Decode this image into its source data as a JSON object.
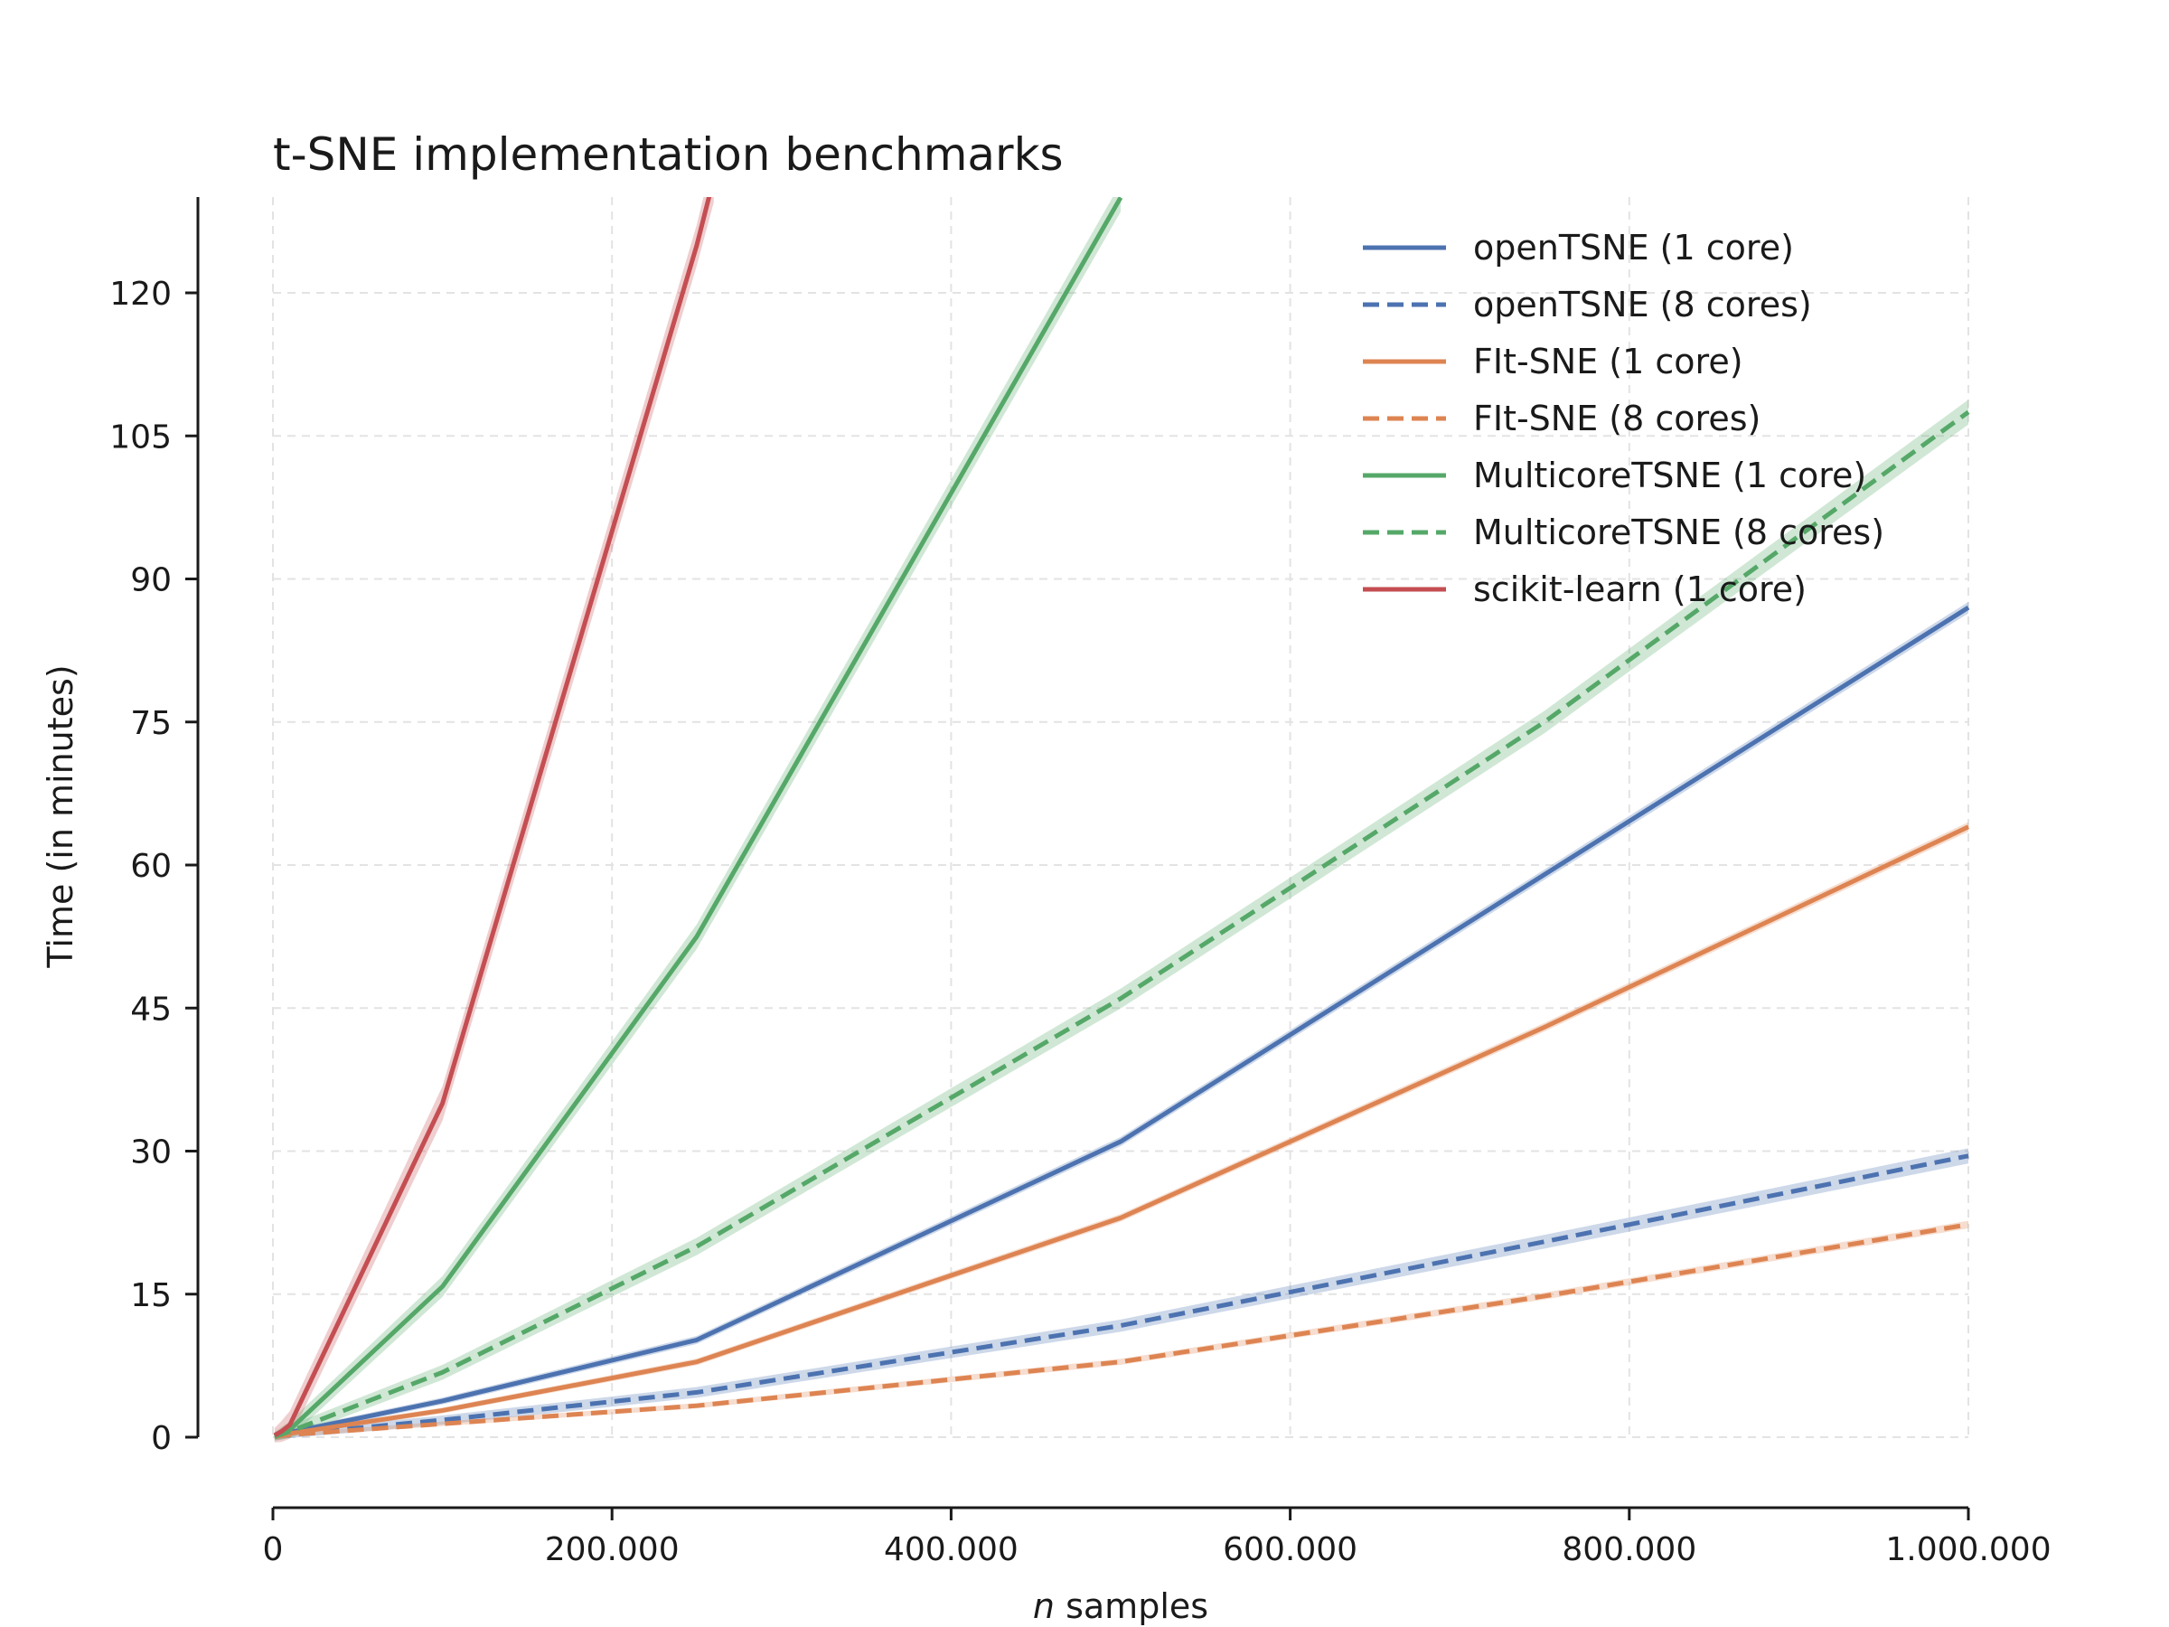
{
  "chart_data": {
    "type": "line",
    "title": "t-SNE implementation benchmarks",
    "xlabel_italic": "n",
    "xlabel_rest": " samples",
    "ylabel": "Time (in minutes)",
    "xlim": [
      0,
      1000000
    ],
    "ylim": [
      -8,
      130
    ],
    "x_ticks": [
      {
        "value": 0,
        "label": "0"
      },
      {
        "value": 200000,
        "label": "200.000"
      },
      {
        "value": 400000,
        "label": "400.000"
      },
      {
        "value": 600000,
        "label": "600.000"
      },
      {
        "value": 800000,
        "label": "800.000"
      },
      {
        "value": 1000000,
        "label": "1.000.000"
      }
    ],
    "y_ticks": [
      {
        "value": 0,
        "label": "0"
      },
      {
        "value": 15,
        "label": "15"
      },
      {
        "value": 30,
        "label": "30"
      },
      {
        "value": 45,
        "label": "45"
      },
      {
        "value": 60,
        "label": "60"
      },
      {
        "value": 75,
        "label": "75"
      },
      {
        "value": 90,
        "label": "90"
      },
      {
        "value": 105,
        "label": "105"
      },
      {
        "value": 120,
        "label": "120"
      }
    ],
    "grid": true,
    "legend_position": "top-right",
    "series": [
      {
        "name": "openTSNE (1 core)",
        "color": "#4c72b0",
        "dashed": false,
        "band": 0.6,
        "x": [
          1000,
          5000,
          10000,
          100000,
          250000,
          500000,
          750000,
          1000000
        ],
        "y": [
          0.1,
          0.3,
          0.5,
          3.8,
          10.2,
          31,
          59,
          87
        ]
      },
      {
        "name": "openTSNE (8 cores)",
        "color": "#4c72b0",
        "dashed": true,
        "band": 0.8,
        "x": [
          1000,
          5000,
          10000,
          100000,
          250000,
          500000,
          750000,
          1000000
        ],
        "y": [
          0.05,
          0.2,
          0.3,
          1.8,
          4.7,
          11.7,
          20.5,
          29.5
        ]
      },
      {
        "name": "FIt-SNE (1 core)",
        "color": "#dd8452",
        "dashed": false,
        "band": 0.5,
        "x": [
          1000,
          5000,
          10000,
          100000,
          250000,
          500000,
          750000,
          1000000
        ],
        "y": [
          0.1,
          0.25,
          0.4,
          2.8,
          7.9,
          23,
          43,
          64
        ]
      },
      {
        "name": "FIt-SNE (8 cores)",
        "color": "#dd8452",
        "dashed": true,
        "band": 0.4,
        "x": [
          1000,
          5000,
          10000,
          100000,
          250000,
          500000,
          750000,
          1000000
        ],
        "y": [
          0.05,
          0.15,
          0.25,
          1.4,
          3.3,
          7.9,
          14.8,
          22.3
        ]
      },
      {
        "name": "MulticoreTSNE (1 core)",
        "color": "#55a868",
        "dashed": false,
        "band": 1.5,
        "x": [
          1000,
          5000,
          10000,
          100000,
          250000,
          500000
        ],
        "y": [
          0.1,
          0.4,
          0.8,
          15.8,
          52.5,
          130
        ]
      },
      {
        "name": "MulticoreTSNE (8 cores)",
        "color": "#55a868",
        "dashed": true,
        "band": 1.3,
        "x": [
          1000,
          5000,
          10000,
          100000,
          250000,
          500000,
          750000,
          1000000
        ],
        "y": [
          0.05,
          0.3,
          0.6,
          6.8,
          20,
          46,
          75,
          107.5
        ]
      },
      {
        "name": "scikit-learn (1 core)",
        "color": "#c44e52",
        "dashed": false,
        "band": 2.5,
        "x": [
          1000,
          5000,
          10000,
          100000,
          250000,
          260000
        ],
        "y": [
          0.2,
          0.6,
          1.3,
          35,
          125,
          132
        ]
      }
    ]
  }
}
